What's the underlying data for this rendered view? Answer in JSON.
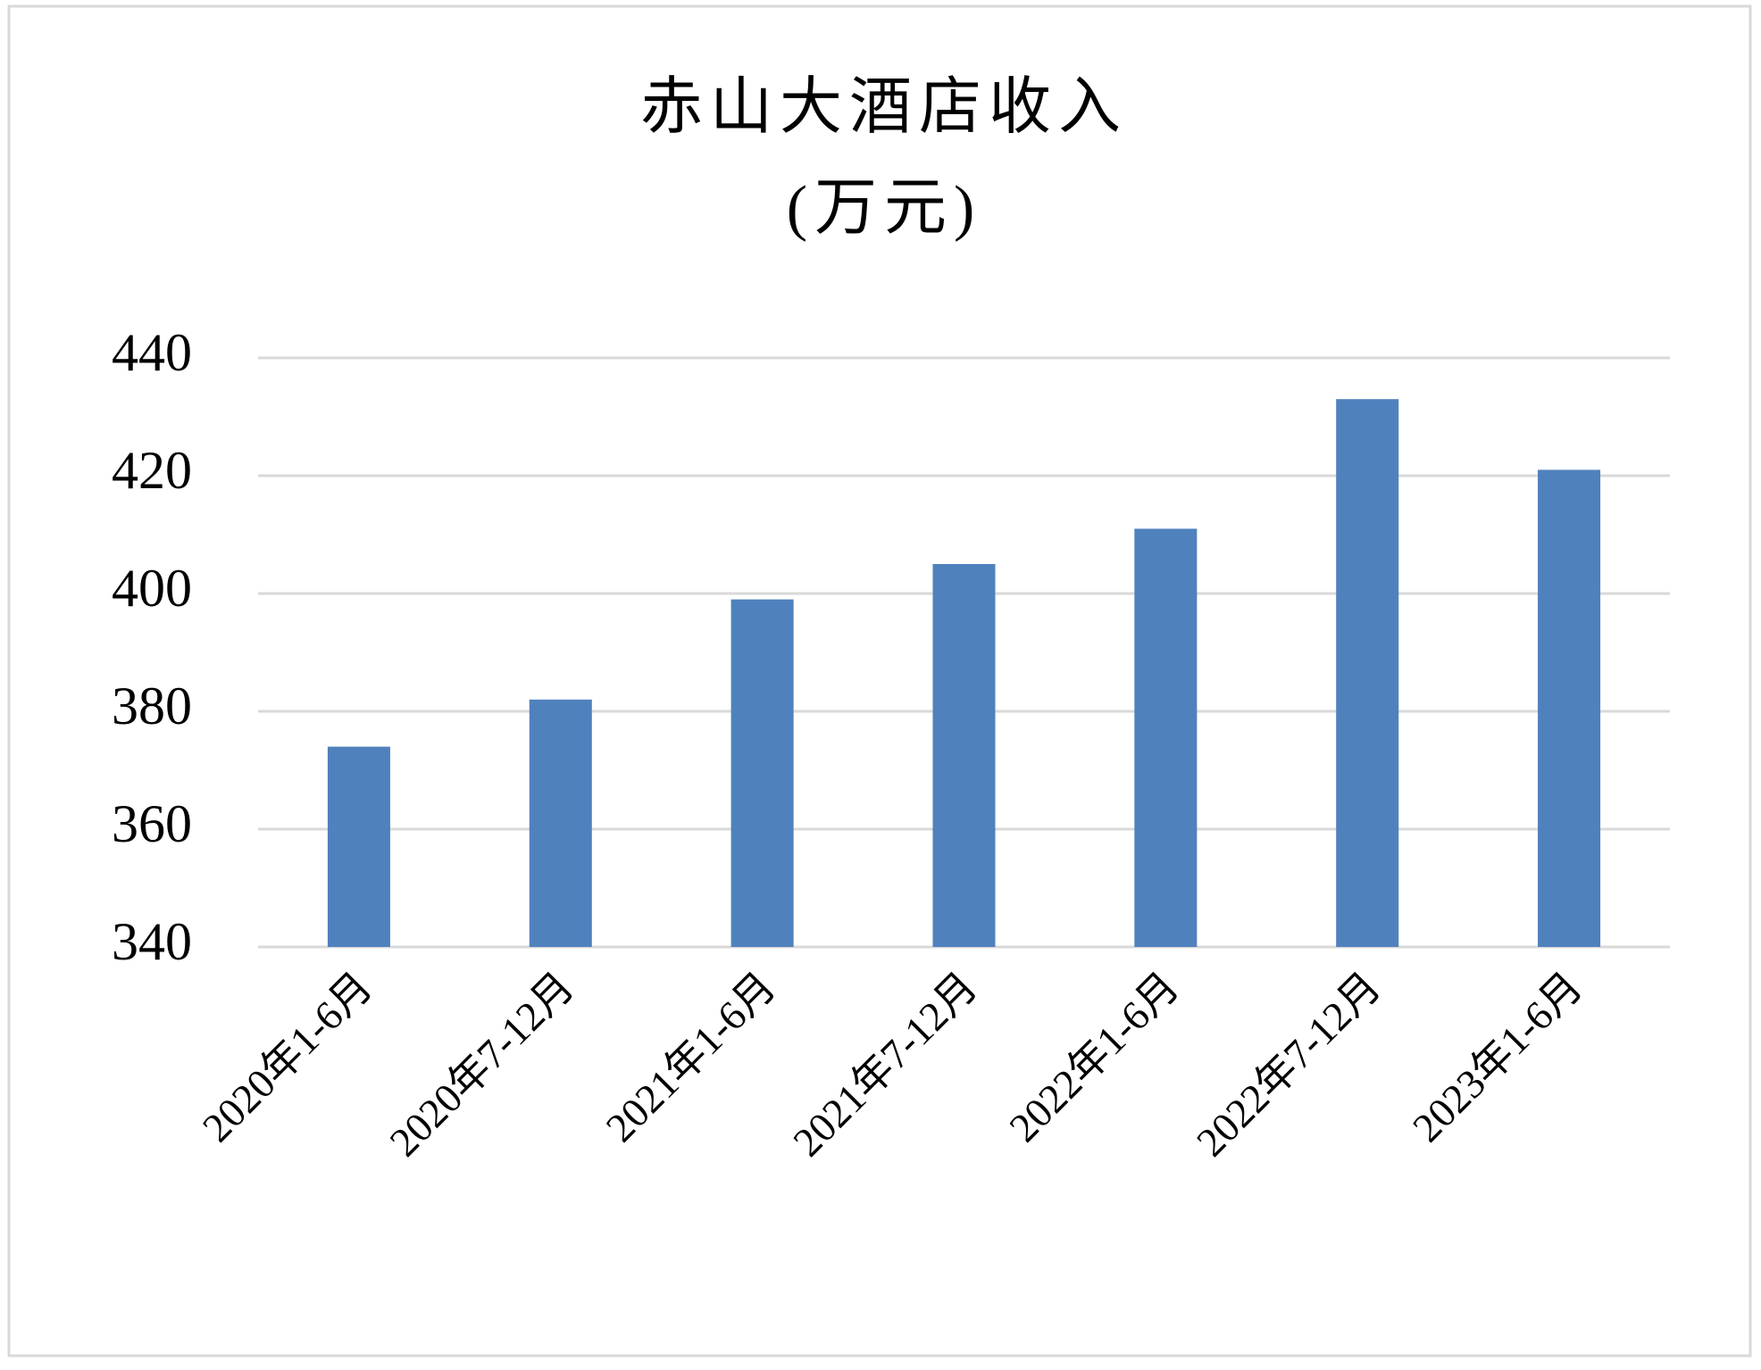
{
  "chart_data": {
    "type": "bar",
    "title": "赤山大酒店收入",
    "subtitle": "(万元)",
    "categories": [
      "2020年1-6月",
      "2020年7-12月",
      "2021年1-6月",
      "2021年7-12月",
      "2022年1-6月",
      "2022年7-12月",
      "2023年1-6月"
    ],
    "values": [
      374,
      382,
      399,
      405,
      411,
      433,
      421
    ],
    "color": "#4f81bd",
    "ylim": [
      340,
      440
    ],
    "yticks": [
      340,
      360,
      380,
      400,
      420,
      440
    ],
    "grid": true
  }
}
